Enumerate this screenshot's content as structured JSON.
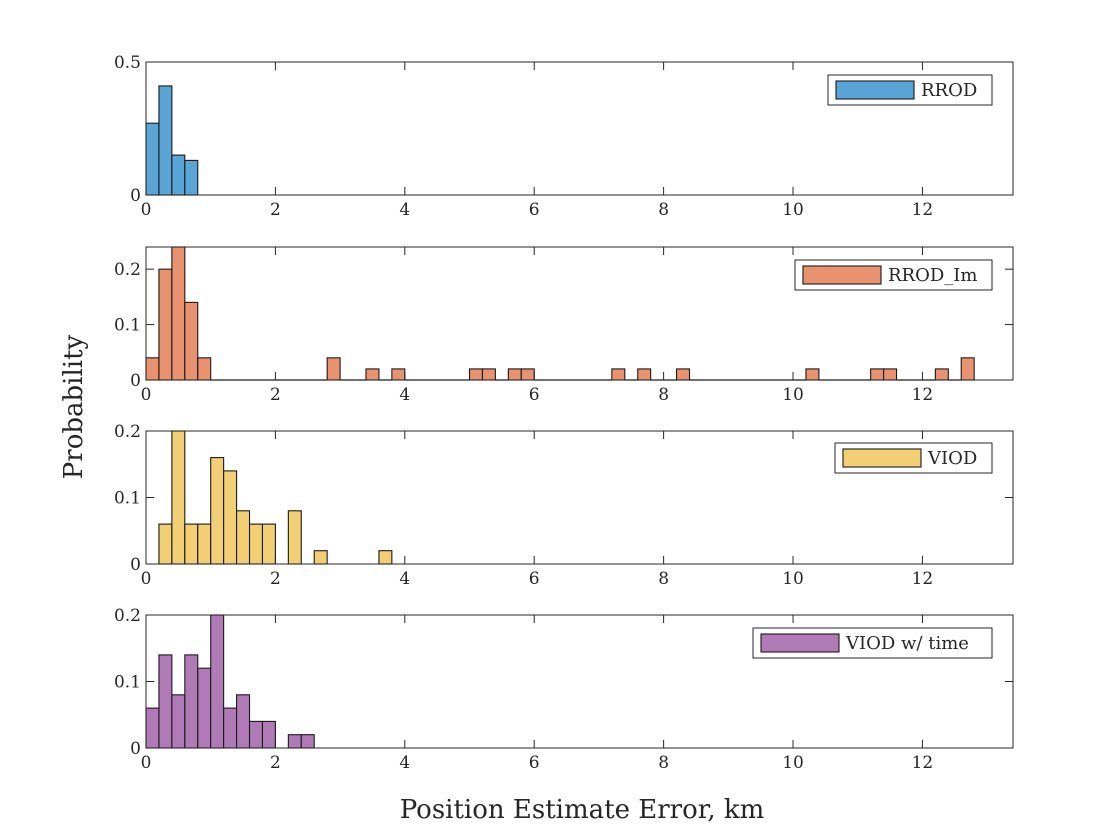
{
  "chart_data": {
    "type": "bar",
    "xlabel": "Position Estimate Error, km",
    "ylabel": "Probability",
    "bin_width": 0.2,
    "grid": false,
    "legend_position": "top-right",
    "panels": [
      {
        "series_name": "RROD",
        "color": "#5aa4d6",
        "xlim": [
          0,
          13.4
        ],
        "ylim": [
          0,
          0.5
        ],
        "xticks": [
          "0",
          "2",
          "4",
          "6",
          "8",
          "10",
          "12"
        ],
        "yticks": [
          "0",
          "0.5"
        ],
        "bin_starts": [
          0.0,
          0.2,
          0.4,
          0.6
        ],
        "values": [
          0.27,
          0.41,
          0.15,
          0.13
        ]
      },
      {
        "series_name": "RROD_Im",
        "color": "#e8926f",
        "xlim": [
          0,
          13.4
        ],
        "ylim": [
          0,
          0.24
        ],
        "xticks": [
          "0",
          "2",
          "4",
          "6",
          "8",
          "10",
          "12"
        ],
        "yticks": [
          "0",
          "0.1",
          "0.2"
        ],
        "bin_starts": [
          0.0,
          0.2,
          0.4,
          0.6,
          0.8,
          1.0,
          1.2,
          1.4,
          1.6,
          1.8,
          2.0,
          2.2,
          2.4,
          2.6,
          2.8,
          3.0,
          3.2,
          3.4,
          3.6,
          3.8,
          4.0,
          4.2,
          4.4,
          4.6,
          4.8,
          5.0,
          5.2,
          5.4,
          5.6,
          5.8,
          6.0,
          6.2,
          6.4,
          6.6,
          6.8,
          7.0,
          7.2,
          7.4,
          7.6,
          7.8,
          8.0,
          8.2,
          8.4,
          8.6,
          8.8,
          9.0,
          9.2,
          9.4,
          9.6,
          9.8,
          10.0,
          10.2,
          10.4,
          10.6,
          10.8,
          11.0,
          11.2,
          11.4,
          11.6,
          11.8,
          12.0,
          12.2,
          12.4,
          12.6
        ],
        "values": [
          0.04,
          0.2,
          0.24,
          0.14,
          0.04,
          0,
          0,
          0,
          0,
          0,
          0,
          0,
          0,
          0,
          0.04,
          0,
          0,
          0.02,
          0,
          0.02,
          0,
          0,
          0,
          0,
          0,
          0.02,
          0.02,
          0,
          0.02,
          0.02,
          0,
          0,
          0,
          0,
          0,
          0,
          0.02,
          0,
          0.02,
          0,
          0,
          0.02,
          0,
          0,
          0,
          0,
          0,
          0,
          0,
          0,
          0,
          0.02,
          0,
          0,
          0,
          0,
          0.02,
          0.02,
          0,
          0,
          0,
          0.02,
          0,
          0.04
        ]
      },
      {
        "series_name": "VIOD",
        "color": "#f2cf74",
        "xlim": [
          0,
          13.4
        ],
        "ylim": [
          0,
          0.2
        ],
        "xticks": [
          "0",
          "2",
          "4",
          "6",
          "8",
          "10",
          "12"
        ],
        "yticks": [
          "0",
          "0.1",
          "0.2"
        ],
        "bin_starts": [
          0.2,
          0.4,
          0.6,
          0.8,
          1.0,
          1.2,
          1.4,
          1.6,
          1.8,
          2.2,
          2.6,
          3.6
        ],
        "values": [
          0.06,
          0.2,
          0.06,
          0.06,
          0.16,
          0.14,
          0.08,
          0.06,
          0.06,
          0.08,
          0.02,
          0.02
        ]
      },
      {
        "series_name": "VIOD w/ time",
        "color": "#b07ab6",
        "xlim": [
          0,
          13.4
        ],
        "ylim": [
          0,
          0.2
        ],
        "xticks": [
          "0",
          "2",
          "4",
          "6",
          "8",
          "10",
          "12"
        ],
        "yticks": [
          "0",
          "0.1",
          "0.2"
        ],
        "bin_starts": [
          0.0,
          0.2,
          0.4,
          0.6,
          0.8,
          1.0,
          1.2,
          1.4,
          1.6,
          1.8,
          2.2,
          2.4
        ],
        "values": [
          0.06,
          0.14,
          0.08,
          0.14,
          0.12,
          0.2,
          0.06,
          0.08,
          0.04,
          0.04,
          0.02,
          0.02
        ]
      }
    ]
  }
}
